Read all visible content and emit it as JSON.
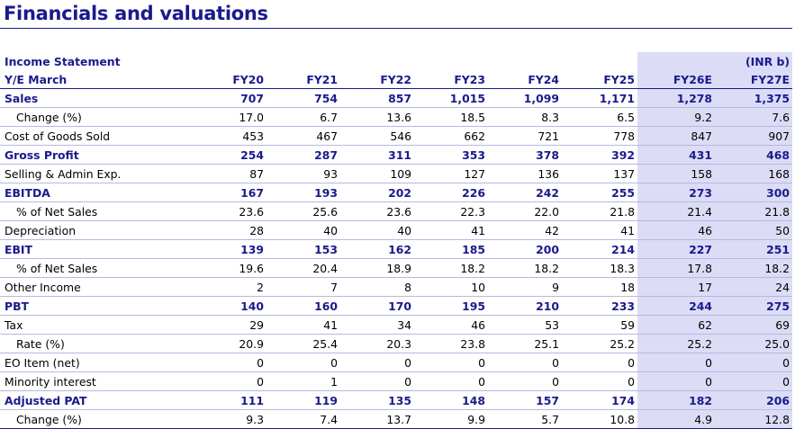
{
  "page": {
    "title": "Financials and valuations"
  },
  "statement": {
    "name": "Income Statement",
    "unit": "(INR b)",
    "year_label": "Y/E March",
    "years": [
      "FY20",
      "FY21",
      "FY22",
      "FY23",
      "FY24",
      "FY25",
      "FY26E",
      "FY27E"
    ],
    "shaded_from_index": 6,
    "rows": [
      {
        "label": "Sales",
        "bold": true,
        "indent": false,
        "values": [
          "707",
          "754",
          "857",
          "1,015",
          "1,099",
          "1,171",
          "1,278",
          "1,375"
        ]
      },
      {
        "label": "Change (%)",
        "bold": false,
        "indent": true,
        "values": [
          "17.0",
          "6.7",
          "13.6",
          "18.5",
          "8.3",
          "6.5",
          "9.2",
          "7.6"
        ]
      },
      {
        "label": "Cost of Goods Sold",
        "bold": false,
        "indent": false,
        "values": [
          "453",
          "467",
          "546",
          "662",
          "721",
          "778",
          "847",
          "907"
        ]
      },
      {
        "label": "Gross Profit",
        "bold": true,
        "indent": false,
        "values": [
          "254",
          "287",
          "311",
          "353",
          "378",
          "392",
          "431",
          "468"
        ]
      },
      {
        "label": "Selling & Admin Exp.",
        "bold": false,
        "indent": false,
        "values": [
          "87",
          "93",
          "109",
          "127",
          "136",
          "137",
          "158",
          "168"
        ]
      },
      {
        "label": "EBITDA",
        "bold": true,
        "indent": false,
        "values": [
          "167",
          "193",
          "202",
          "226",
          "242",
          "255",
          "273",
          "300"
        ]
      },
      {
        "label": "% of Net Sales",
        "bold": false,
        "indent": true,
        "values": [
          "23.6",
          "25.6",
          "23.6",
          "22.3",
          "22.0",
          "21.8",
          "21.4",
          "21.8"
        ]
      },
      {
        "label": "Depreciation",
        "bold": false,
        "indent": false,
        "values": [
          "28",
          "40",
          "40",
          "41",
          "42",
          "41",
          "46",
          "50"
        ]
      },
      {
        "label": "EBIT",
        "bold": true,
        "indent": false,
        "values": [
          "139",
          "153",
          "162",
          "185",
          "200",
          "214",
          "227",
          "251"
        ]
      },
      {
        "label": "% of Net Sales",
        "bold": false,
        "indent": true,
        "values": [
          "19.6",
          "20.4",
          "18.9",
          "18.2",
          "18.2",
          "18.3",
          "17.8",
          "18.2"
        ]
      },
      {
        "label": "Other Income",
        "bold": false,
        "indent": false,
        "values": [
          "2",
          "7",
          "8",
          "10",
          "9",
          "18",
          "17",
          "24"
        ]
      },
      {
        "label": "PBT",
        "bold": true,
        "indent": false,
        "values": [
          "140",
          "160",
          "170",
          "195",
          "210",
          "233",
          "244",
          "275"
        ]
      },
      {
        "label": "Tax",
        "bold": false,
        "indent": false,
        "values": [
          "29",
          "41",
          "34",
          "46",
          "53",
          "59",
          "62",
          "69"
        ]
      },
      {
        "label": "Rate (%)",
        "bold": false,
        "indent": true,
        "values": [
          "20.9",
          "25.4",
          "20.3",
          "23.8",
          "25.1",
          "25.2",
          "25.2",
          "25.0"
        ]
      },
      {
        "label": "EO Item (net)",
        "bold": false,
        "indent": false,
        "values": [
          "0",
          "0",
          "0",
          "0",
          "0",
          "0",
          "0",
          "0"
        ]
      },
      {
        "label": "Minority interest",
        "bold": false,
        "indent": false,
        "values": [
          "0",
          "1",
          "0",
          "0",
          "0",
          "0",
          "0",
          "0"
        ]
      },
      {
        "label": "Adjusted PAT",
        "bold": true,
        "indent": false,
        "values": [
          "111",
          "119",
          "135",
          "148",
          "157",
          "174",
          "182",
          "206"
        ]
      },
      {
        "label": "Change (%)",
        "bold": false,
        "indent": true,
        "values": [
          "9.3",
          "7.4",
          "13.7",
          "9.9",
          "5.7",
          "10.8",
          "4.9",
          "12.8"
        ]
      }
    ]
  },
  "colors": {
    "accent": "#1a1a8c",
    "estimate_shade": "#dcdcf6"
  }
}
